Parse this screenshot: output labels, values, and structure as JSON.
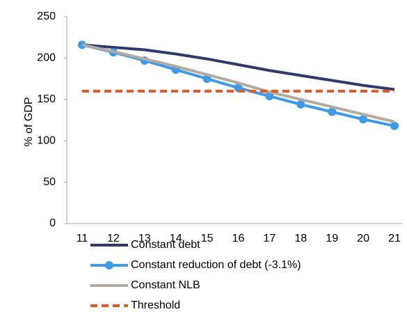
{
  "chart_data": {
    "type": "line",
    "y_label": "% of GDP",
    "categories": [
      "11",
      "12",
      "13",
      "14",
      "15",
      "16",
      "17",
      "18",
      "19",
      "20",
      "21"
    ],
    "ylim": [
      0,
      250
    ],
    "yticks": [
      0,
      50,
      100,
      150,
      200,
      250
    ],
    "series": [
      {
        "name": "Constant debt",
        "color": "#2e3a6b",
        "values": [
          216,
          213,
          210,
          205,
          199,
          192,
          185,
          179,
          173,
          167,
          162
        ]
      },
      {
        "name": "Constant reduction of debt (-3.1%)",
        "color": "#3d9be9",
        "marker": true,
        "values": [
          216,
          207,
          197,
          186,
          175,
          164,
          154,
          144,
          135,
          126,
          118
        ]
      },
      {
        "name": "Constant NLB",
        "color": "#b4aaa0",
        "values": [
          216,
          208,
          199,
          190,
          180,
          170,
          159,
          150,
          141,
          132,
          123
        ]
      },
      {
        "name": "Threshold",
        "color": "#e05a1e",
        "dashed": true,
        "values": [
          160,
          160,
          160,
          160,
          160,
          160,
          160,
          160,
          160,
          160,
          160
        ]
      }
    ]
  }
}
